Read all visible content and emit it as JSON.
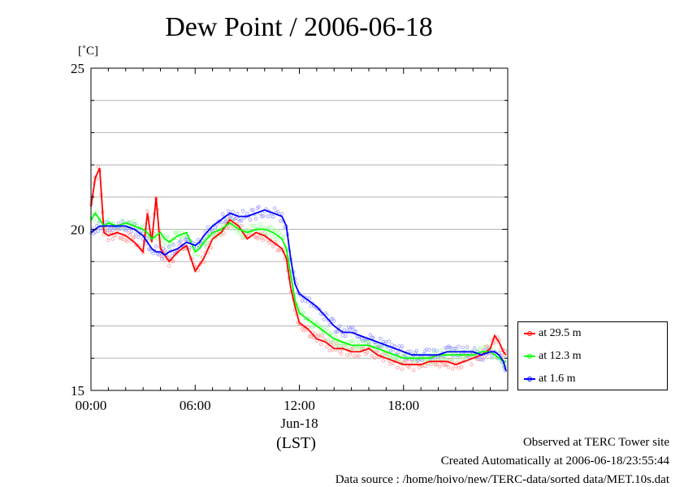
{
  "header": {
    "title": "Dew Point / 2006-06-18",
    "unit": "[˚C]"
  },
  "footer": {
    "line1": "Observed at TERC Tower site",
    "line2": "Created Automatically at 2006-06-18/23:55:44",
    "line3": "Data source : /home/hoivo/new/TERC-data/sorted  data/MET.10s.dat"
  },
  "chart_data": {
    "type": "line",
    "xlabel": "(LST)",
    "date_label": "Jun-18",
    "ylabel": "[˚C]",
    "xlim": [
      0,
      24
    ],
    "ylim": [
      15,
      25
    ],
    "x_ticks": [
      0,
      6,
      12,
      18
    ],
    "x_tick_labels": [
      "00:00",
      "06:00",
      "12:00",
      "18:00"
    ],
    "y_ticks": [
      15,
      20,
      25
    ],
    "y_tick_labels": [
      "15",
      "20",
      "25"
    ],
    "grid": true,
    "legend_position": "right-bottom",
    "x": [
      0,
      0.25,
      0.5,
      0.75,
      1,
      1.5,
      2,
      2.5,
      3,
      3.25,
      3.5,
      3.75,
      4,
      4.25,
      4.5,
      5,
      5.5,
      6,
      6.25,
      6.5,
      7,
      7.5,
      8,
      8.5,
      9,
      9.5,
      10,
      10.5,
      11,
      11.25,
      11.5,
      11.75,
      12,
      12.5,
      13,
      13.5,
      14,
      14.5,
      15,
      15.5,
      16,
      16.5,
      17,
      17.5,
      18,
      18.5,
      19,
      19.5,
      20,
      20.5,
      21,
      21.5,
      22,
      22.5,
      23,
      23.25,
      23.5,
      23.75,
      23.9
    ],
    "series": [
      {
        "name": "at 29.5 m",
        "color": "#ff0000",
        "band_color": "#ff9999",
        "values": [
          20.7,
          21.6,
          21.9,
          19.9,
          19.8,
          19.9,
          19.8,
          19.6,
          19.3,
          20.5,
          19.6,
          21.0,
          19.4,
          19.2,
          19.0,
          19.3,
          19.5,
          18.7,
          18.9,
          19.1,
          19.7,
          19.9,
          20.3,
          20.1,
          19.7,
          19.9,
          19.8,
          19.6,
          19.4,
          19.1,
          18.2,
          17.6,
          17.1,
          16.9,
          16.6,
          16.5,
          16.3,
          16.3,
          16.2,
          16.2,
          16.3,
          16.1,
          16.0,
          15.9,
          15.8,
          15.8,
          15.8,
          15.9,
          15.9,
          15.9,
          15.8,
          15.9,
          16.0,
          16.1,
          16.3,
          16.7,
          16.5,
          16.2,
          16.1
        ]
      },
      {
        "name": "at 12.3 m",
        "color": "#00ff00",
        "band_color": "#99ff99",
        "values": [
          20.3,
          20.5,
          20.3,
          20.1,
          20.2,
          20.1,
          20.2,
          20.1,
          20.0,
          19.9,
          19.7,
          19.8,
          19.9,
          19.7,
          19.6,
          19.8,
          19.9,
          19.3,
          19.4,
          19.6,
          19.9,
          20.0,
          20.2,
          20.0,
          19.9,
          20.0,
          20.0,
          19.9,
          19.7,
          19.4,
          18.6,
          17.8,
          17.4,
          17.2,
          17.0,
          16.8,
          16.6,
          16.5,
          16.4,
          16.4,
          16.4,
          16.3,
          16.2,
          16.1,
          16.0,
          16.0,
          16.0,
          16.0,
          16.1,
          16.1,
          16.1,
          16.1,
          16.1,
          16.2,
          16.2,
          16.1,
          16.0,
          15.9,
          15.9
        ]
      },
      {
        "name": "at 1.6 m",
        "color": "#0000ff",
        "band_color": "#9999ff",
        "values": [
          19.9,
          20.0,
          20.1,
          20.1,
          20.1,
          20.1,
          20.1,
          20.0,
          19.8,
          19.6,
          19.4,
          19.3,
          19.3,
          19.2,
          19.3,
          19.4,
          19.6,
          19.5,
          19.6,
          19.8,
          20.1,
          20.3,
          20.5,
          20.4,
          20.4,
          20.5,
          20.6,
          20.5,
          20.4,
          20.1,
          19.1,
          18.3,
          18.0,
          17.8,
          17.6,
          17.3,
          17.0,
          16.8,
          16.8,
          16.7,
          16.6,
          16.5,
          16.4,
          16.3,
          16.2,
          16.1,
          16.1,
          16.1,
          16.1,
          16.2,
          16.2,
          16.2,
          16.2,
          16.1,
          16.2,
          16.2,
          16.1,
          15.9,
          15.6
        ]
      }
    ]
  }
}
